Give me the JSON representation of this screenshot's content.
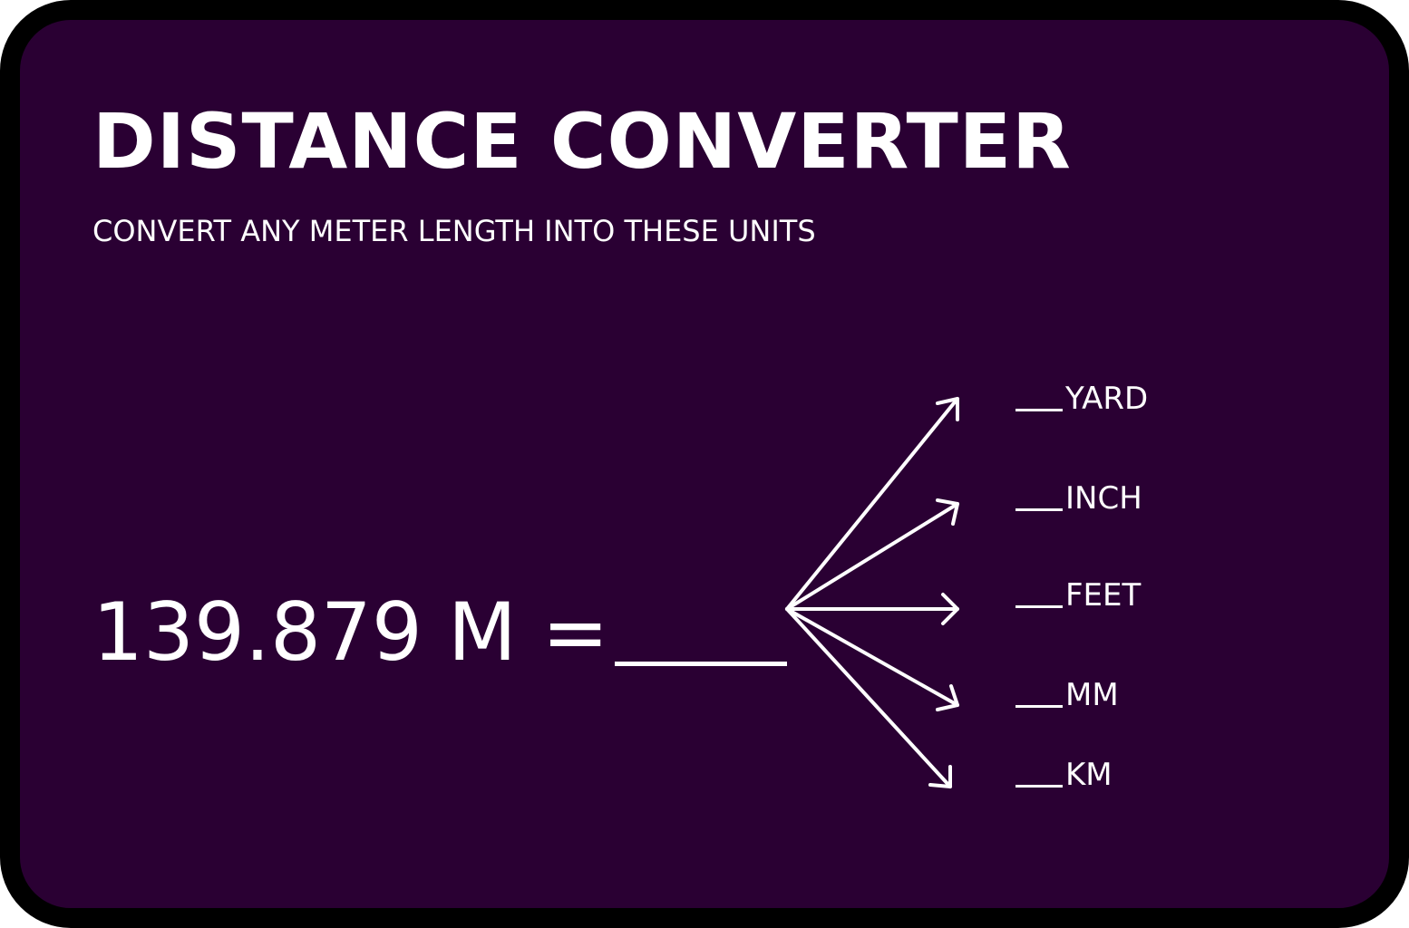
{
  "title": "DISTANCE CONVERTER",
  "subtitle": "CONVERT ANY METER LENGTH INTO THESE UNITS",
  "equation": "139.879 M =",
  "units": [
    {
      "label": "YARD"
    },
    {
      "label": "INCH"
    },
    {
      "label": "FEET"
    },
    {
      "label": "MM"
    },
    {
      "label": "KM"
    }
  ],
  "colors": {
    "background": "#2a0033",
    "border": "#000000",
    "text": "#ffffff"
  }
}
